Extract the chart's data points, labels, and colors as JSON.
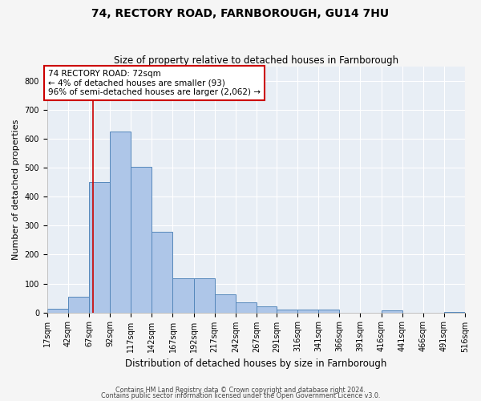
{
  "title": "74, RECTORY ROAD, FARNBOROUGH, GU14 7HU",
  "subtitle": "Size of property relative to detached houses in Farnborough",
  "xlabel": "Distribution of detached houses by size in Farnborough",
  "ylabel": "Number of detached properties",
  "footnote1": "Contains HM Land Registry data © Crown copyright and database right 2024.",
  "footnote2": "Contains public sector information licensed under the Open Government Licence v3.0.",
  "bin_edges": [
    17,
    42,
    67,
    92,
    117,
    142,
    167,
    192,
    217,
    242,
    267,
    291,
    316,
    341,
    366,
    391,
    416,
    441,
    466,
    491,
    516
  ],
  "bar_heights": [
    12,
    55,
    450,
    625,
    505,
    280,
    118,
    118,
    62,
    35,
    20,
    10,
    10,
    10,
    0,
    0,
    8,
    0,
    0,
    2
  ],
  "bar_color": "#aec6e8",
  "bar_edge_color": "#5588bb",
  "ylim": [
    0,
    850
  ],
  "yticks": [
    0,
    100,
    200,
    300,
    400,
    500,
    600,
    700,
    800
  ],
  "xtick_labels": [
    "17sqm",
    "42sqm",
    "67sqm",
    "92sqm",
    "117sqm",
    "142sqm",
    "167sqm",
    "192sqm",
    "217sqm",
    "242sqm",
    "267sqm",
    "291sqm",
    "316sqm",
    "341sqm",
    "366sqm",
    "391sqm",
    "416sqm",
    "441sqm",
    "466sqm",
    "491sqm",
    "516sqm"
  ],
  "vline_x": 72,
  "vline_color": "#cc0000",
  "annotation_text": "74 RECTORY ROAD: 72sqm\n← 4% of detached houses are smaller (93)\n96% of semi-detached houses are larger (2,062) →",
  "annotation_box_color": "#ffffff",
  "annotation_box_edge": "#cc0000",
  "background_color": "#e8eef5",
  "grid_color": "#ffffff",
  "title_fontsize": 10,
  "subtitle_fontsize": 8.5,
  "axis_label_fontsize": 8,
  "tick_fontsize": 7,
  "annotation_fontsize": 7.5,
  "fig_width": 6.0,
  "fig_height": 5.0,
  "fig_dpi": 100
}
